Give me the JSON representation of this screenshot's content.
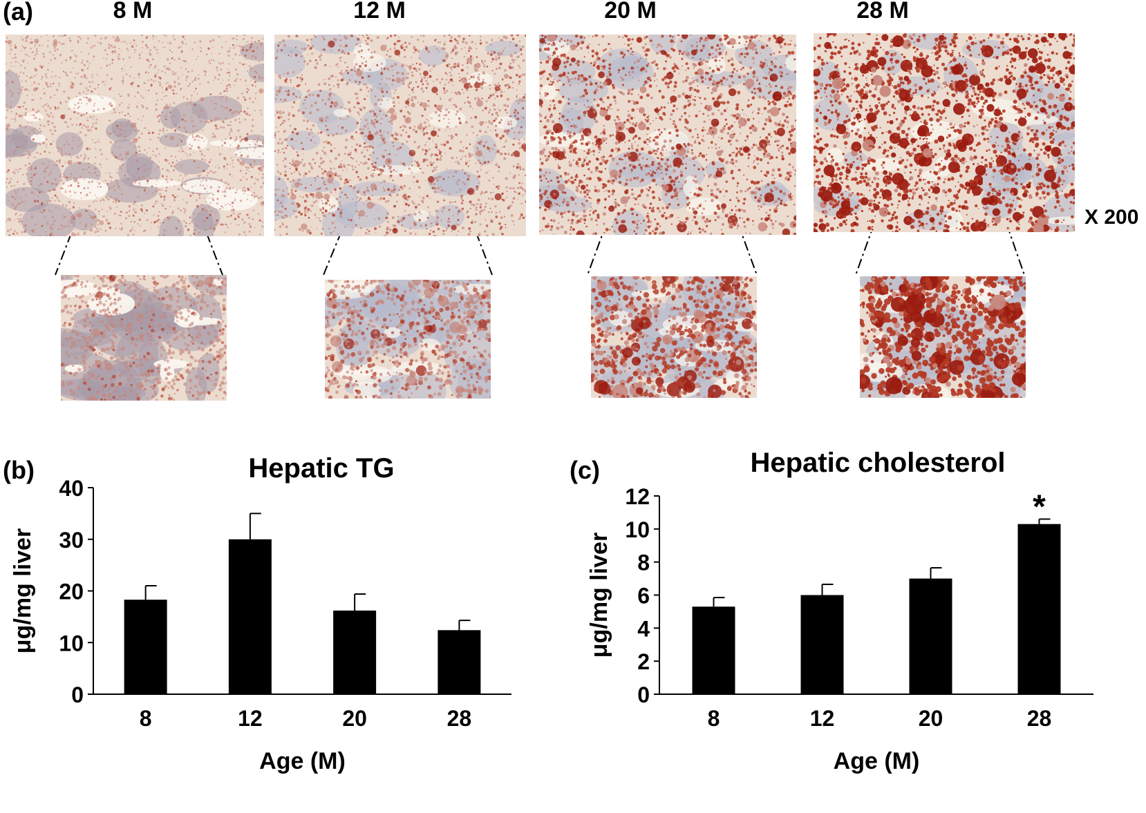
{
  "panel_a": {
    "letter": "(a)",
    "ages": [
      "8 M",
      "12 M",
      "20 M",
      "28 M"
    ],
    "magnification": "X 200",
    "lipid_density": [
      0.15,
      0.35,
      0.62,
      0.85
    ]
  },
  "panel_b": {
    "letter": "(b)"
  },
  "panel_c": {
    "letter": "(c)"
  },
  "chart_data": [
    {
      "type": "bar",
      "title": "Hepatic TG",
      "xlabel": "Age (M)",
      "ylabel": "μg/mg liver",
      "categories": [
        "8",
        "12",
        "20",
        "28"
      ],
      "values": [
        18.3,
        30.0,
        16.2,
        12.4
      ],
      "error": [
        2.7,
        5.0,
        3.2,
        1.9
      ],
      "ylim": [
        0,
        40
      ],
      "yticks": [
        "0",
        "10",
        "20",
        "30",
        "40"
      ],
      "annotations": [
        "",
        "",
        "",
        ""
      ],
      "bar_color": "#000000"
    },
    {
      "type": "bar",
      "title": "Hepatic cholesterol",
      "xlabel": "Age (M)",
      "ylabel": "μg/mg liver",
      "categories": [
        "8",
        "12",
        "20",
        "28"
      ],
      "values": [
        5.3,
        6.0,
        7.0,
        10.3
      ],
      "error": [
        0.55,
        0.65,
        0.65,
        0.3
      ],
      "ylim": [
        0,
        12
      ],
      "yticks": [
        "0",
        "2",
        "4",
        "6",
        "8",
        "10",
        "12"
      ],
      "annotations": [
        "",
        "",
        "",
        "*"
      ],
      "bar_color": "#000000"
    }
  ]
}
